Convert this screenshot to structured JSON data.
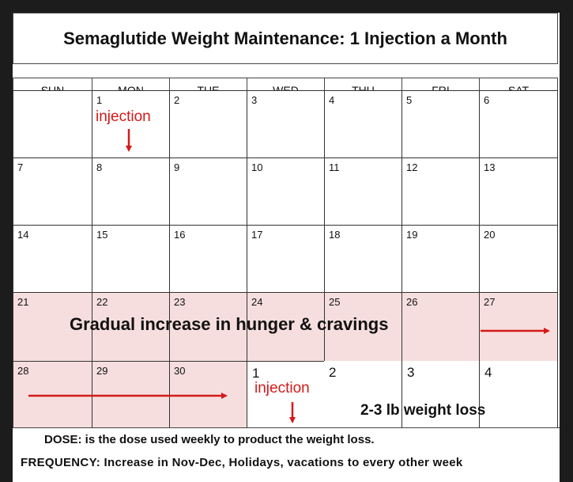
{
  "title": "Semaglutide Weight Maintenance: 1 Injection a Month",
  "days": [
    "SUN",
    "MON",
    "TUE",
    "WED",
    "THU",
    "FRI",
    "SAT"
  ],
  "weeks": [
    [
      "",
      "1",
      "2",
      "3",
      "4",
      "5",
      "6"
    ],
    [
      "7",
      "8",
      "9",
      "10",
      "11",
      "12",
      "13"
    ],
    [
      "14",
      "15",
      "16",
      "17",
      "18",
      "19",
      "20"
    ],
    [
      "21",
      "22",
      "23",
      "24",
      "25",
      "26",
      "27"
    ],
    [
      "28",
      "29",
      "30",
      "1",
      "2",
      "3",
      "4"
    ]
  ],
  "notes": {
    "injection_1": "injection",
    "injection_2": "injection",
    "hunger": "Gradual increase in hunger & cravings",
    "weight_loss": "2-3 lb  weight loss"
  },
  "footer": {
    "dose": "DOSE: is the dose used weekly to product the weight loss.",
    "frequency": "FREQUENCY: Increase in Nov-Dec, Holidays, vacations to every other week"
  },
  "colors": {
    "highlight": "#f7dede",
    "arrow": "#d41a1a"
  }
}
